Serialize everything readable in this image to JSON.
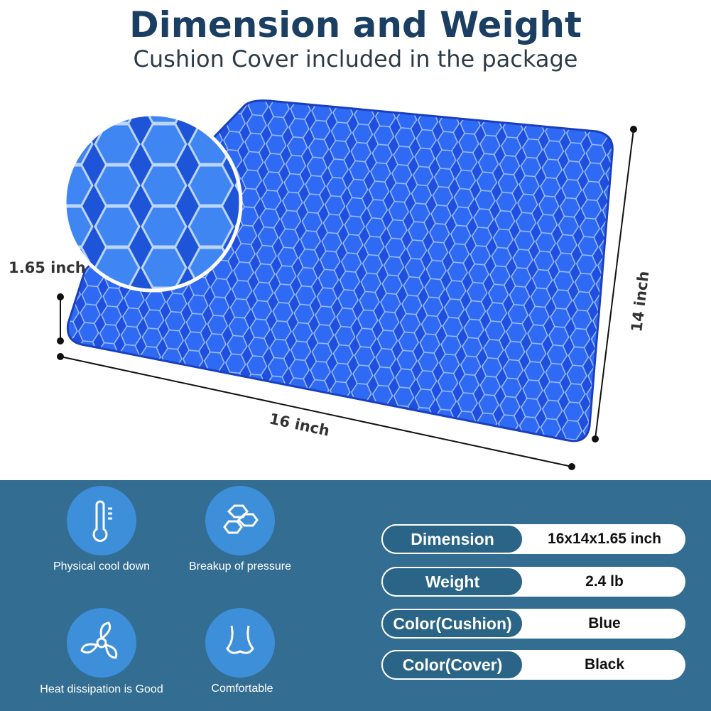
{
  "header": {
    "title": "Dimension and Weight",
    "subtitle": "Cushion Cover included in the package"
  },
  "dimensions": {
    "height": "1.65 inch",
    "depth": "14 inch",
    "width": "16 inch"
  },
  "features": [
    {
      "label": "Physical cool down"
    },
    {
      "label": "Breakup of pressure"
    },
    {
      "label": "Heat dissipation is Good"
    },
    {
      "label": "Comfortable"
    }
  ],
  "specs": [
    {
      "label": "Dimension",
      "value": "16x14x1.65 inch"
    },
    {
      "label": "Weight",
      "value": "2.4 lb"
    },
    {
      "label": "Color(Cushion)",
      "value": "Blue"
    },
    {
      "label": "Color(Cover)",
      "value": "Black"
    }
  ]
}
